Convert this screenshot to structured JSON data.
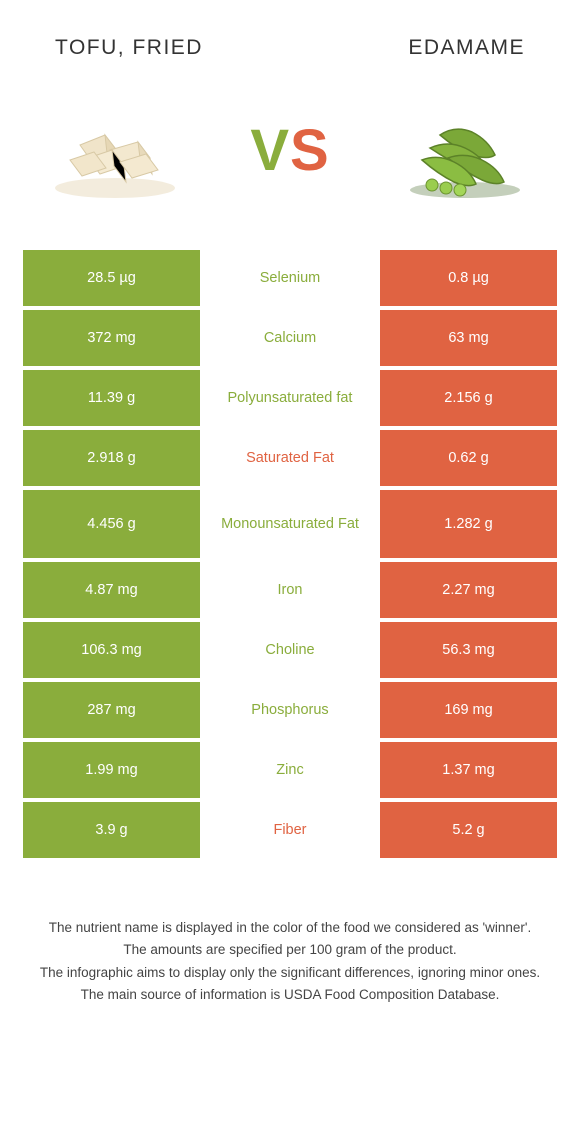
{
  "colors": {
    "left": "#8aad3c",
    "right": "#e06342",
    "bg": "#ffffff",
    "text": "#333333"
  },
  "header": {
    "left_name": "TOFU, FRIED",
    "right_name": "EDAMAME",
    "vs_v": "V",
    "vs_s": "S"
  },
  "rows": [
    {
      "left": "28.5 µg",
      "label": "Selenium",
      "right": "0.8 µg",
      "winner": "left",
      "tall": false
    },
    {
      "left": "372 mg",
      "label": "Calcium",
      "right": "63 mg",
      "winner": "left",
      "tall": false
    },
    {
      "left": "11.39 g",
      "label": "Polyunsaturated fat",
      "right": "2.156 g",
      "winner": "left",
      "tall": false
    },
    {
      "left": "2.918 g",
      "label": "Saturated Fat",
      "right": "0.62 g",
      "winner": "right",
      "tall": false
    },
    {
      "left": "4.456 g",
      "label": "Monounsaturated Fat",
      "right": "1.282 g",
      "winner": "left",
      "tall": true
    },
    {
      "left": "4.87 mg",
      "label": "Iron",
      "right": "2.27 mg",
      "winner": "left",
      "tall": false
    },
    {
      "left": "106.3 mg",
      "label": "Choline",
      "right": "56.3 mg",
      "winner": "left",
      "tall": false
    },
    {
      "left": "287 mg",
      "label": "Phosphorus",
      "right": "169 mg",
      "winner": "left",
      "tall": false
    },
    {
      "left": "1.99 mg",
      "label": "Zinc",
      "right": "1.37 mg",
      "winner": "left",
      "tall": false
    },
    {
      "left": "3.9 g",
      "label": "Fiber",
      "right": "5.2 g",
      "winner": "right",
      "tall": false
    }
  ],
  "footer": [
    "The nutrient name is displayed in the color of the food we considered as 'winner'.",
    "The amounts are specified per 100 gram of the product.",
    "The infographic aims to display only the significant differences, ignoring minor ones.",
    "The main source of information is USDA Food Composition Database."
  ]
}
